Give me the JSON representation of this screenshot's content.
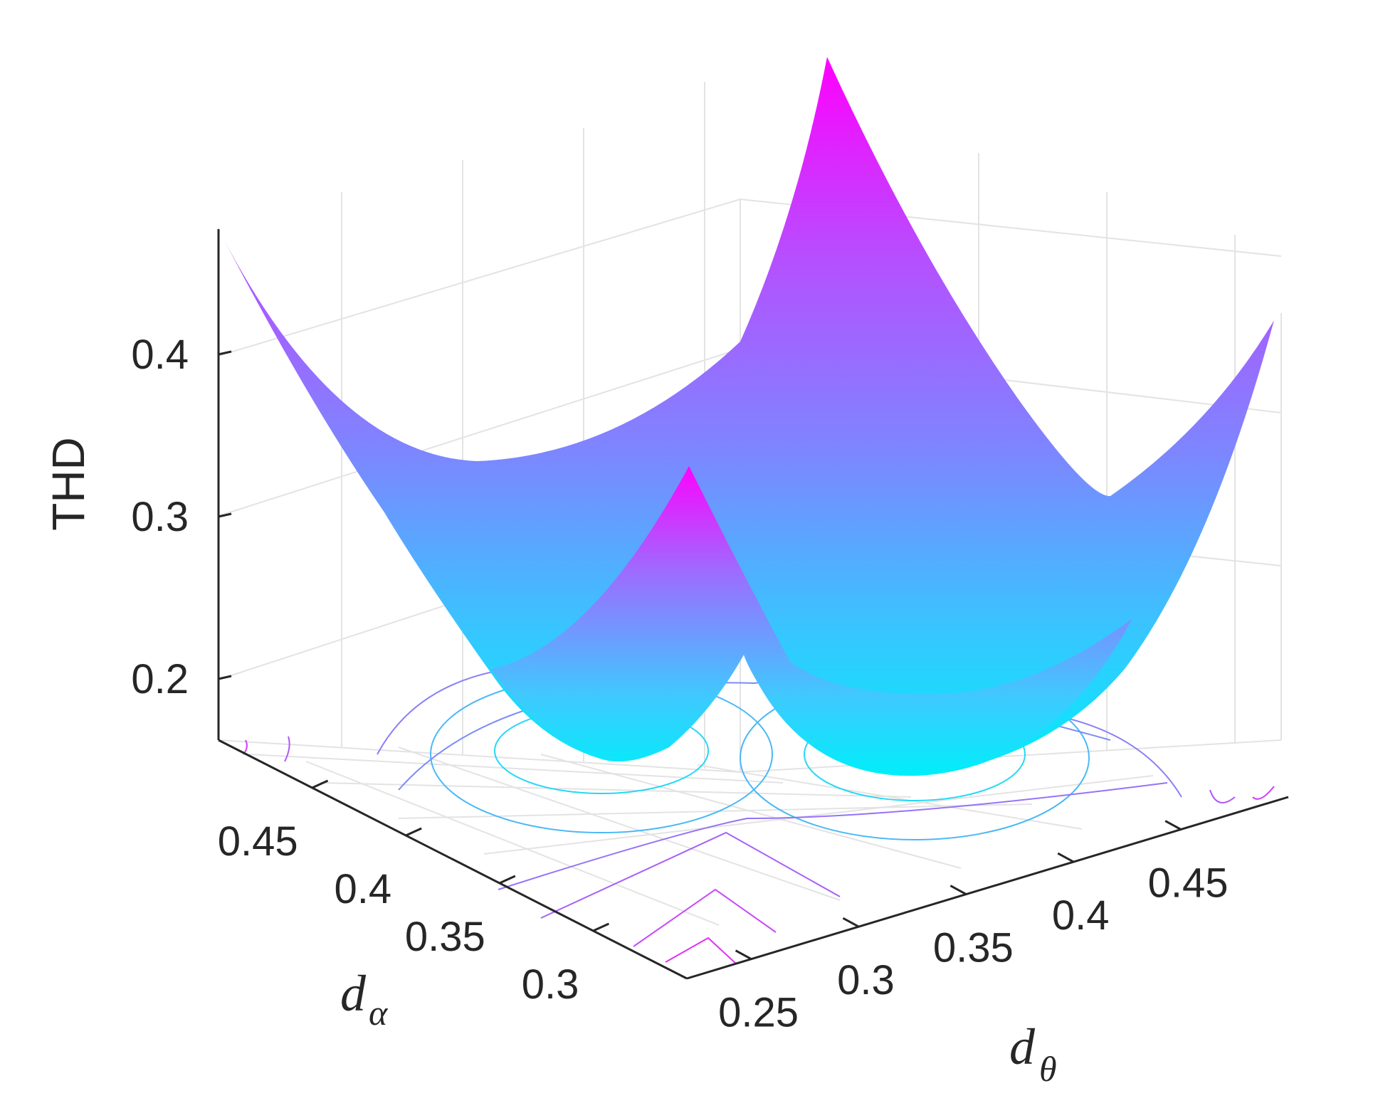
{
  "chart_data": {
    "type": "surface",
    "xlabel": {
      "base": "d",
      "sub": "θ"
    },
    "ylabel": {
      "base": "d",
      "sub": "α"
    },
    "zlabel": "THD",
    "x_ticks": [
      "0.25",
      "0.3",
      "0.35",
      "0.4",
      "0.45"
    ],
    "y_ticks": [
      "0.3",
      "0.35",
      "0.4",
      "0.45"
    ],
    "z_ticks": [
      "0.2",
      "0.3",
      "0.4"
    ],
    "xlim": [
      0.22,
      0.5
    ],
    "ylim": [
      0.25,
      0.5
    ],
    "zlim": [
      0.15,
      0.5
    ],
    "grid": true,
    "colormap": {
      "low": "#00eefa",
      "high": "#ff00ff"
    },
    "minima": [
      {
        "x": 0.3,
        "y": 0.38,
        "z": 0.18
      },
      {
        "x": 0.42,
        "y": 0.35,
        "z": 0.175
      }
    ],
    "ridge_peaks": [
      {
        "x": 0.22,
        "y": 0.5,
        "z": 0.47
      },
      {
        "x": 0.5,
        "y": 0.5,
        "z": 0.5
      },
      {
        "x": 0.5,
        "y": 0.25,
        "z": 0.42
      },
      {
        "x": 0.33,
        "y": 0.3,
        "z": 0.31
      }
    ],
    "contour_plane": "floor"
  }
}
